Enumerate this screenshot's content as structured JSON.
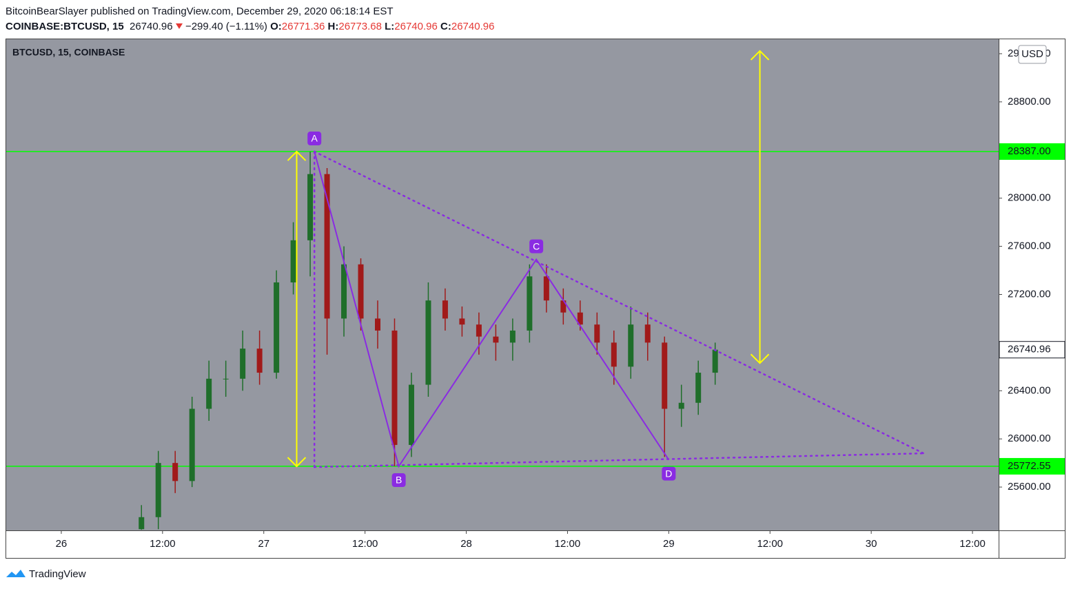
{
  "header": {
    "line1": "BitcoinBearSlayer published on TradingView.com, December 29, 2020 06:18:14 EST",
    "symbol": "COINBASE:BTCUSD, 15",
    "price": "26740.96",
    "change": "−299.40 (−1.11%)",
    "o_label": "O:",
    "o": "26771.36",
    "h_label": "H:",
    "h": "26773.68",
    "l_label": "L:",
    "l": "26740.96",
    "c_label": "C:",
    "c": "26740.96"
  },
  "footer": {
    "brand": "TradingView"
  },
  "chart_data": {
    "type": "candlestick",
    "title": "BTCUSD, 15, COINBASE",
    "currency": "USD",
    "up_color": "#1f6e2a",
    "down_color": "#a11a1a",
    "x": [
      9.5,
      11.5,
      13.5,
      15.5,
      17.5,
      19.5,
      21.5,
      23.5,
      25.5,
      27.5,
      29.5,
      31.5,
      33.5,
      35.5,
      37.5,
      39.5,
      41.5,
      43.5,
      45.5,
      47.5,
      49.5,
      51.5,
      53.5,
      55.5,
      57.5,
      59.5,
      61.5,
      63.5,
      65.5,
      67.5,
      69.5,
      71.5,
      73.5,
      75.5,
      77.5
    ],
    "open": [
      25250,
      25350,
      25800,
      25650,
      26250,
      26500,
      26500,
      26750,
      26550,
      27300,
      27650,
      28200,
      27000,
      27450,
      27000,
      26900,
      25950,
      26450,
      27150,
      27000,
      26950,
      26850,
      26800,
      26900,
      27350,
      27150,
      27050,
      26950,
      26800,
      26600,
      26950,
      26800,
      26250,
      26300,
      26550
    ],
    "high": [
      25450,
      25900,
      25900,
      26350,
      26650,
      26650,
      26900,
      26900,
      27400,
      27800,
      28387,
      28250,
      27600,
      27500,
      27150,
      27000,
      26550,
      27300,
      27250,
      27100,
      27050,
      26950,
      27000,
      27450,
      27450,
      27250,
      27150,
      27050,
      26900,
      27100,
      27050,
      26850,
      26450,
      26650,
      26800
    ],
    "low": [
      25245,
      25250,
      25550,
      25600,
      26150,
      26350,
      26400,
      26450,
      26500,
      27200,
      27350,
      26700,
      26850,
      26900,
      26750,
      25772,
      25850,
      26350,
      26900,
      26850,
      26700,
      26650,
      26650,
      26800,
      27050,
      26950,
      26900,
      26700,
      26450,
      26500,
      26650,
      25850,
      26100,
      26200,
      26450
    ],
    "close": [
      25350,
      25800,
      25650,
      26250,
      26500,
      26500,
      26750,
      26550,
      27300,
      27650,
      28200,
      27000,
      27450,
      27000,
      26900,
      25950,
      26450,
      27150,
      27000,
      26950,
      26850,
      26800,
      26900,
      27350,
      27150,
      27050,
      26950,
      26800,
      26600,
      26950,
      26800,
      26250,
      26300,
      26550,
      26740.96
    ],
    "last_label": "26740.96",
    "xlim": [
      -6.53,
      111.1
    ],
    "ylim": [
      25240,
      29320
    ],
    "xticks": [
      {
        "value": 0,
        "label": "26"
      },
      {
        "value": 12,
        "label": "12:00"
      },
      {
        "value": 24,
        "label": "27"
      },
      {
        "value": 36,
        "label": "12:00"
      },
      {
        "value": 48,
        "label": "28"
      },
      {
        "value": 60,
        "label": "12:00"
      },
      {
        "value": 72,
        "label": "29"
      },
      {
        "value": 84,
        "label": "12:00"
      },
      {
        "value": 96,
        "label": "30"
      },
      {
        "value": 108,
        "label": "12:00"
      }
    ],
    "yticks": [
      {
        "value": 25600,
        "label": "25600.00"
      },
      {
        "value": 26000,
        "label": "26000.00"
      },
      {
        "value": 26400,
        "label": "26400.00"
      },
      {
        "value": 27200,
        "label": "27200.00"
      },
      {
        "value": 27600,
        "label": "27600.00"
      },
      {
        "value": 28000,
        "label": "28000.00"
      },
      {
        "value": 28800,
        "label": "28800.00"
      },
      {
        "value": 29200,
        "label": "29200.00"
      }
    ],
    "levels": {
      "color": "#00ff00",
      "values": [
        28387,
        25772.55
      ],
      "value_labels": [
        "28387.00",
        "25772.55"
      ]
    },
    "pattern": {
      "color": "#8a2be2",
      "labels": [
        "A",
        "B",
        "C",
        "D"
      ],
      "x": [
        30,
        40,
        56.3,
        72
      ],
      "y": [
        28387,
        25772,
        27491,
        25826
      ]
    },
    "trendlines": [
      {
        "x": [
          30,
          102.2
        ],
        "y": [
          28387,
          25880
        ]
      },
      {
        "x": [
          30,
          102.2
        ],
        "y": [
          25766,
          25880
        ]
      },
      {
        "x": [
          30,
          30
        ],
        "y": [
          28387,
          25766
        ]
      }
    ],
    "arrows": {
      "color": "#ffff00",
      "items": [
        {
          "x": [
            27.9,
            27.9
          ],
          "y": [
            28387,
            25772
          ]
        },
        {
          "x": [
            82.8,
            82.8
          ],
          "y": [
            29223,
            26629
          ]
        }
      ]
    }
  }
}
